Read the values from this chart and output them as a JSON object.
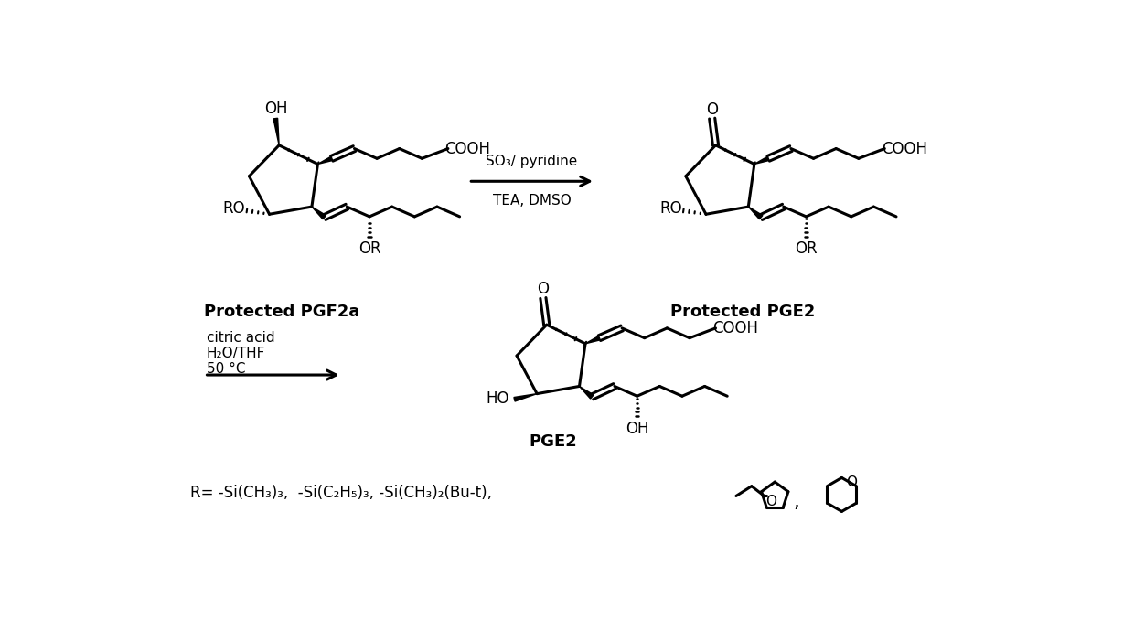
{
  "background": "#ffffff",
  "text_color": "#000000",
  "label_pgf2a": "Protected PGF2a",
  "label_pge2_protected": "Protected PGE2",
  "label_pge2": "PGE2",
  "reagent1_line1": "SO₃/ pyridine",
  "reagent1_line2": "TEA, DMSO",
  "reagent2_line1": "citric acid",
  "reagent2_line2": "H₂O/THF",
  "reagent2_line3": "50 °C",
  "r_label": "R= -Si(CH₃)₃,  -Si(C₂H₅)₃, -Si(CH₃)₂(Bu-t),",
  "fig_width": 12.4,
  "fig_height": 6.77
}
